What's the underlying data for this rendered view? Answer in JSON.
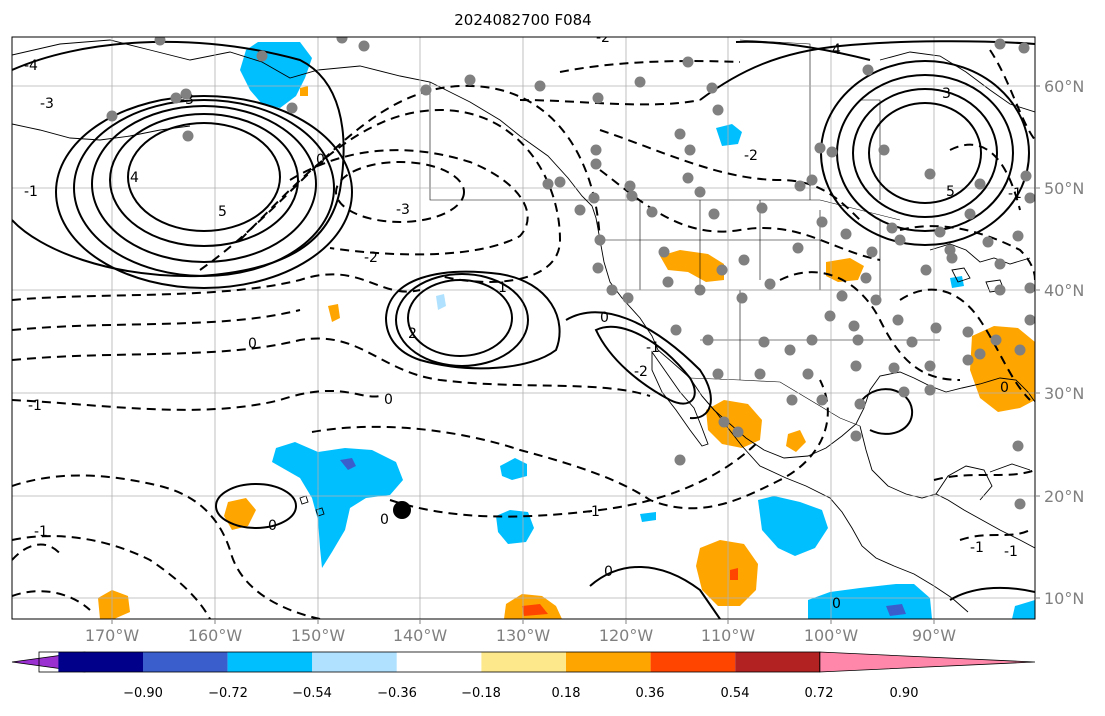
{
  "title": "2024082700 F084",
  "lat_labels": [
    "60°N",
    "50°N",
    "40°N",
    "30°N",
    "20°N",
    "10°N"
  ],
  "lon_labels": [
    "170°W",
    "160°W",
    "150°W",
    "140°W",
    "130°W",
    "120°W",
    "110°W",
    "100°W",
    "90°W"
  ],
  "colorbar": {
    "tick_labels": [
      "−0.90",
      "−0.72",
      "−0.54",
      "−0.36",
      "−0.18",
      "0.18",
      "0.36",
      "0.54",
      "0.72",
      "0.90"
    ],
    "colors": [
      "#9b30d0",
      "#00008b",
      "#3a5fcd",
      "#00bfff",
      "#b0e2ff",
      "#ffffff",
      "#fde98b",
      "#ffa500",
      "#ff4500",
      "#b22222",
      "#ff88aa"
    ]
  },
  "contour_labels": [
    "-4",
    "-3",
    "-3",
    "4",
    "5",
    "0",
    "-1",
    "-2",
    "-3",
    "-2",
    "1",
    "2",
    "0",
    "-1",
    "-2",
    "0",
    "-1",
    "0",
    "-1",
    "0",
    "0",
    "0",
    "-1",
    "4",
    "3",
    "5",
    "-1",
    "-2",
    "0",
    "-1",
    "-1",
    "0"
  ],
  "colors": {
    "positive_contour": "#000000",
    "negative_contour": "#000000",
    "land_outline": "#000000",
    "grid": "#b0b0b0",
    "marker": "#808080",
    "storm": "#000000"
  }
}
